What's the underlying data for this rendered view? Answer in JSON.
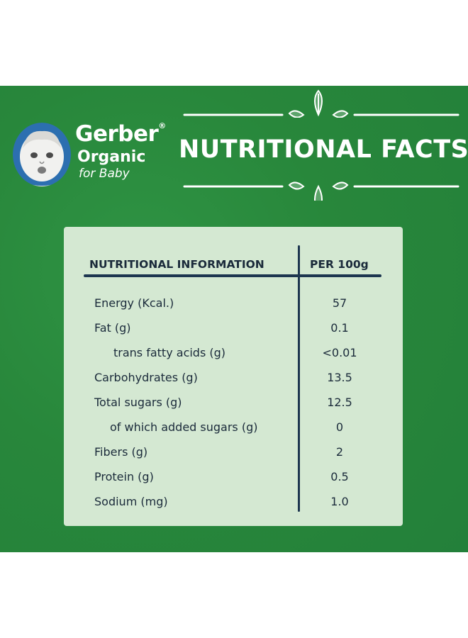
{
  "brand": {
    "name": "Gerber",
    "line1": "Organic",
    "line2": "for Baby",
    "registered_mark": "®"
  },
  "heading": "NUTRITIONAL FACTS",
  "table": {
    "columns": [
      "NUTRITIONAL INFORMATION",
      "PER 100g"
    ],
    "rows": [
      {
        "label": "Energy (Kcal.)",
        "value": "57",
        "indent": false
      },
      {
        "label": "Fat (g)",
        "value": "0.1",
        "indent": false
      },
      {
        "label": "trans fatty acids (g)",
        "value": "<0.01",
        "indent": true
      },
      {
        "label": "Carbohydrates (g)",
        "value": "13.5",
        "indent": false
      },
      {
        "label": "Total sugars (g)",
        "value": "12.5",
        "indent": false
      },
      {
        "label": "of which added sugars (g)",
        "value": "0",
        "indent": true
      },
      {
        "label": "Fibers (g)",
        "value": "2",
        "indent": false
      },
      {
        "label": "Protein (g)",
        "value": "0.5",
        "indent": false
      },
      {
        "label": "Sodium (mg)",
        "value": "1.0",
        "indent": false
      }
    ]
  },
  "colors": {
    "background_green": "#2a8a3e",
    "card": "#d4e8d2",
    "ink": "#1d3650"
  },
  "icons": [
    "baby-portrait-icon",
    "leaf-cluster-icon"
  ]
}
